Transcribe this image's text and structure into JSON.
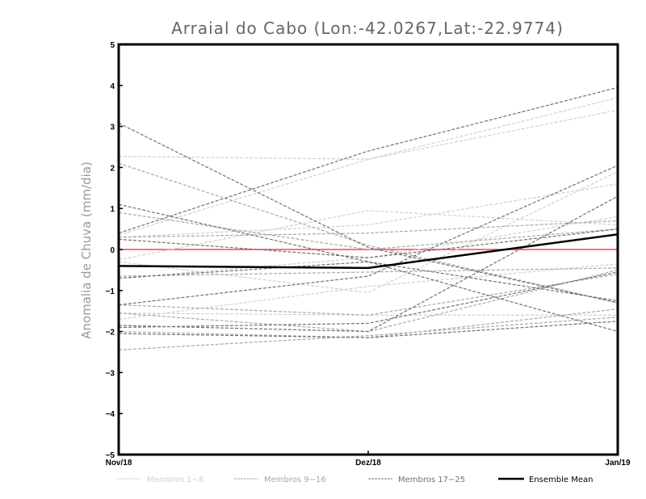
{
  "chart_data": {
    "type": "line",
    "title": "Arraial do Cabo (Lon:-42.0267,Lat:-22.9774)",
    "xlabel": "",
    "ylabel": "Anomalia de Chuva (mm/dia)",
    "categories": [
      "Nov/18",
      "Dez/18",
      "Jan/19"
    ],
    "ylim": [
      -5,
      5
    ],
    "yticks": [
      "5",
      "4",
      "3",
      "2",
      "1",
      "0",
      "-1",
      "-2",
      "-3",
      "-4",
      "-5"
    ],
    "grid": false,
    "zero_line_color": "#ff4444",
    "legend_position": "bottom",
    "groups": [
      {
        "name": "Membros 1-8",
        "color": "#d0d0d0",
        "members": [
          [
            2.27,
            2.2,
            3.7
          ],
          [
            -0.25,
            0.95,
            0.6
          ],
          [
            0.3,
            0.6,
            1.6
          ],
          [
            -0.3,
            -1.05,
            1.9
          ],
          [
            -1.7,
            -0.9,
            -0.35
          ],
          [
            0.35,
            2.2,
            3.4
          ],
          [
            -1.55,
            -1.6,
            -1.6
          ],
          [
            -0.7,
            -0.2,
            0.8
          ]
        ]
      },
      {
        "name": "Membros 9-16",
        "color": "#a8a8a8",
        "members": [
          [
            2.1,
            0.1,
            -1.3
          ],
          [
            0.9,
            0.0,
            0.5
          ],
          [
            -1.55,
            -2.0,
            -0.5
          ],
          [
            0.3,
            0.4,
            0.7
          ],
          [
            -2.0,
            -2.15,
            -1.45
          ],
          [
            -0.65,
            -0.55,
            -0.45
          ],
          [
            -1.35,
            -1.6,
            -0.6
          ],
          [
            -2.45,
            -2.1,
            -1.65
          ]
        ]
      },
      {
        "name": "Membros 17-25",
        "color": "#707070",
        "members": [
          [
            3.08,
            0.05,
            -1.3
          ],
          [
            1.1,
            -0.3,
            -1.25
          ],
          [
            0.4,
            2.4,
            3.95
          ],
          [
            -1.35,
            -0.65,
            2.05
          ],
          [
            -1.85,
            -2.0,
            1.3
          ],
          [
            -1.9,
            -1.8,
            -0.55
          ],
          [
            0.25,
            -0.2,
            0.5
          ],
          [
            -2.05,
            -2.15,
            -1.75
          ],
          [
            -0.7,
            -0.3,
            -2.0
          ]
        ]
      }
    ],
    "ensemble_mean": {
      "name": "Ensemble Mean",
      "color": "#000000",
      "values": [
        -0.4,
        -0.45,
        0.37
      ]
    }
  }
}
